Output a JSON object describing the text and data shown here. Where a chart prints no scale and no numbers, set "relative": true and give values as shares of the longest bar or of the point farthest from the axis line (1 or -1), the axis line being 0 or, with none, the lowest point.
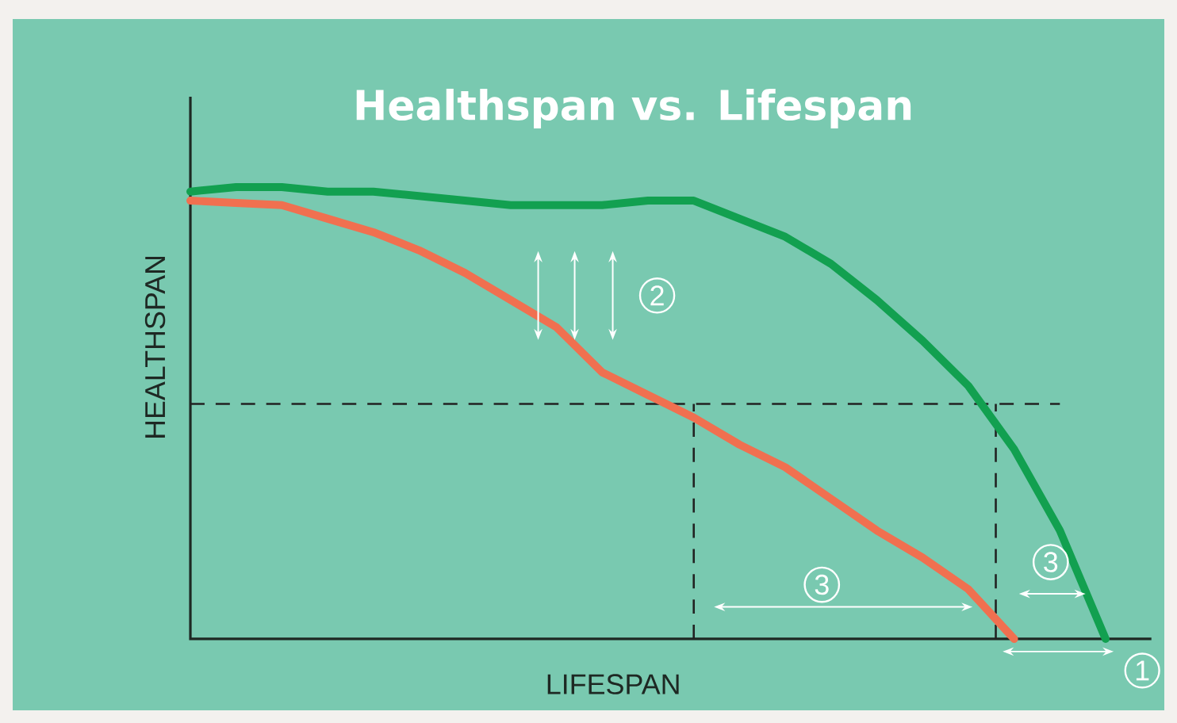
{
  "chart_data": {
    "type": "line",
    "title": "Healthspan vs. Lifespan",
    "xlabel": "LIFESPAN",
    "ylabel": "HEALTHSPAN",
    "relative": true,
    "marker": "none",
    "line_style": "solid",
    "categories": [
      null,
      null,
      null,
      null,
      null,
      null,
      null,
      null,
      null,
      null,
      null,
      null,
      null,
      null,
      null,
      null,
      null,
      null,
      null,
      null,
      null
    ],
    "series": [
      {
        "color": "#12a050",
        "values": [
          0.99,
          1,
          1,
          0.99,
          0.99,
          0.98,
          0.97,
          0.96,
          0.96,
          0.96,
          0.97,
          0.97,
          0.93,
          0.89,
          0.83,
          0.75,
          0.66,
          0.56,
          0.42,
          0.24,
          0
        ]
      },
      {
        "color": "#f07050",
        "values": [
          0.97,
          0.965,
          0.96,
          0.93,
          0.9,
          0.86,
          0.81,
          0.75,
          0.69,
          0.59,
          0.54,
          0.49,
          0.43,
          0.38,
          0.31,
          0.24,
          0.18,
          0.11,
          0,
          null,
          null
        ]
      }
    ],
    "ref_lines": [
      {
        "axis": "y",
        "value": 0.52,
        "color": "#222222",
        "line_style": "dashed"
      }
    ],
    "annotations": [
      "2",
      "3",
      "3",
      "1"
    ]
  }
}
